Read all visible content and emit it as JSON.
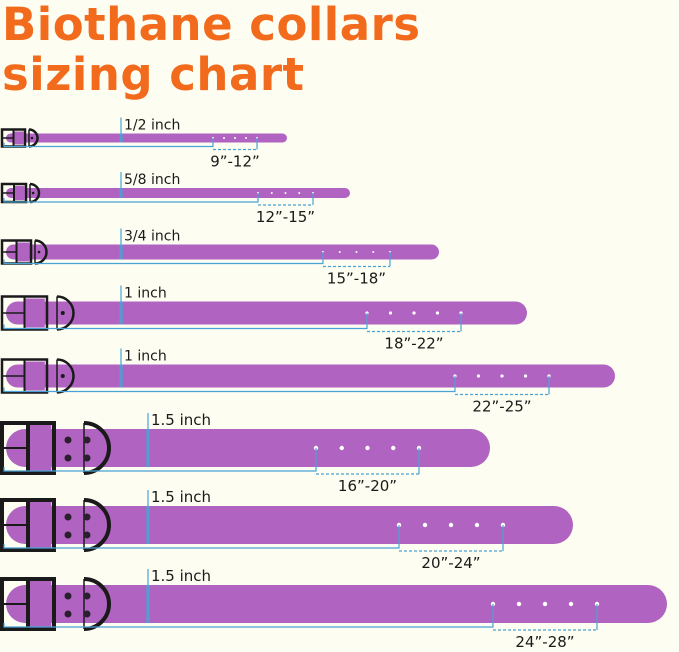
{
  "title": {
    "line1": "Biothane collars",
    "line2": "sizing chart"
  },
  "colors": {
    "title": "#f26a1b",
    "strap": "#b063c0",
    "measure_line": "#4aa3d6",
    "hardware": "#1a1a1a",
    "background": "#fdfdf1"
  },
  "collars": [
    {
      "width": "1/2 inch",
      "range": "9”-12”",
      "holes": 5
    },
    {
      "width": "5/8 inch",
      "range": "12”-15”",
      "holes": 5
    },
    {
      "width": "3/4 inch",
      "range": "15”-18”",
      "holes": 5
    },
    {
      "width": "1 inch",
      "range": "18”-22”",
      "holes": 5
    },
    {
      "width": "1 inch",
      "range": "22”-25”",
      "holes": 5
    },
    {
      "width": "1.5 inch",
      "range": "16”-20”",
      "holes": 5
    },
    {
      "width": "1.5 inch",
      "range": "20”-24”",
      "holes": 5
    },
    {
      "width": "1.5 inch",
      "range": "24”-28”",
      "holes": 5
    }
  ]
}
